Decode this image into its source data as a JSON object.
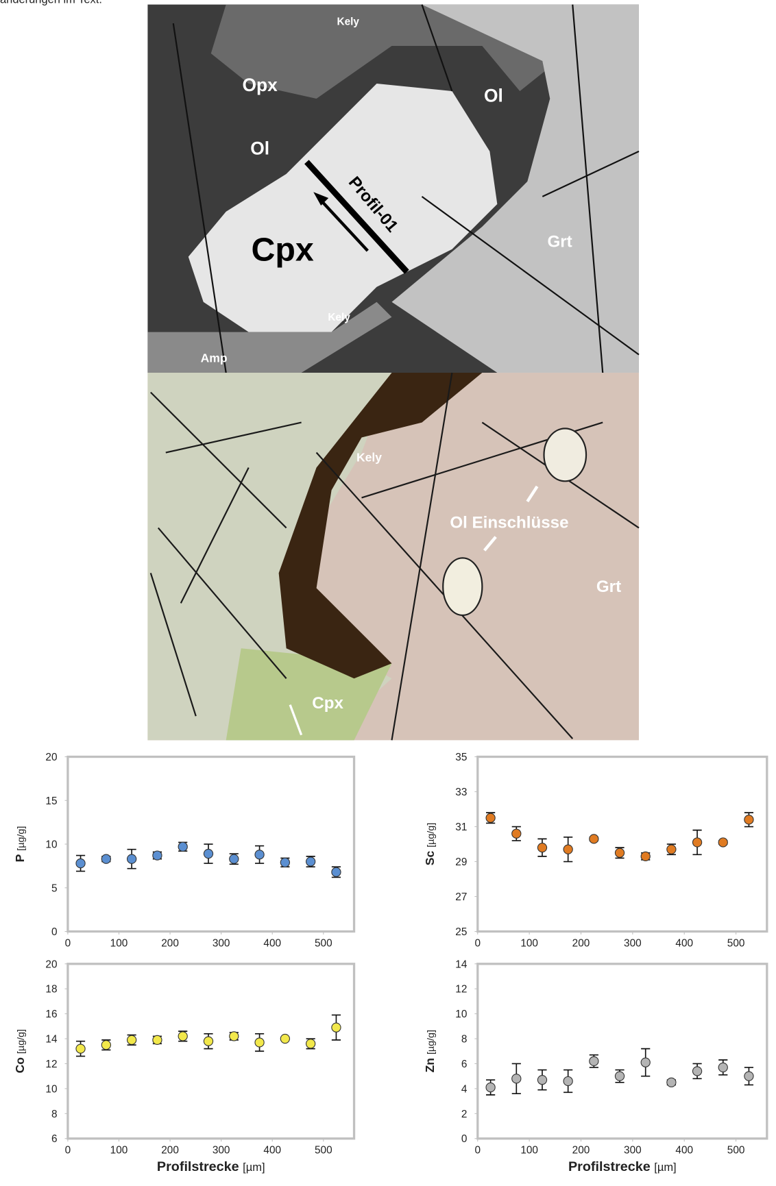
{
  "header": {
    "text": "änderungen im Text."
  },
  "sem_image": {
    "labels": [
      "Kely",
      "Opx",
      "Ol",
      "Ol",
      "Profil-01",
      "Cpx",
      "Grt",
      "Kely",
      "Amp"
    ]
  },
  "light_image": {
    "labels": [
      "Kely",
      "Ol Einschlüsse",
      "Grt",
      "Cpx"
    ]
  },
  "chart_data": [
    {
      "type": "scatter",
      "y_label": "P",
      "y_unit": "[µg/g]",
      "x": [
        25,
        75,
        125,
        175,
        225,
        275,
        325,
        375,
        425,
        475,
        525
      ],
      "values": [
        7.8,
        8.3,
        8.3,
        8.7,
        9.7,
        8.9,
        8.3,
        8.8,
        7.9,
        8.0,
        6.8
      ],
      "errors": [
        0.9,
        0.3,
        1.1,
        0.4,
        0.5,
        1.1,
        0.6,
        1.0,
        0.5,
        0.6,
        0.6
      ],
      "color": "#5b8fd1",
      "xlim": [
        0,
        560
      ],
      "xticks": [
        0,
        100,
        200,
        300,
        400,
        500
      ],
      "ylim": [
        0,
        20
      ],
      "yticks": [
        0,
        5,
        10,
        15,
        20
      ]
    },
    {
      "type": "scatter",
      "y_label": "Sc",
      "y_unit": "[µg/g]",
      "x": [
        25,
        75,
        125,
        175,
        225,
        275,
        325,
        375,
        425,
        475,
        525
      ],
      "values": [
        31.5,
        30.6,
        29.8,
        29.7,
        30.3,
        29.5,
        29.3,
        29.7,
        30.1,
        30.1,
        31.4
      ],
      "errors": [
        0.3,
        0.4,
        0.5,
        0.7,
        0.1,
        0.3,
        0.2,
        0.3,
        0.7,
        0.1,
        0.4
      ],
      "color": "#e07b22",
      "xlim": [
        0,
        560
      ],
      "xticks": [
        0,
        100,
        200,
        300,
        400,
        500
      ],
      "ylim": [
        25,
        35
      ],
      "yticks": [
        25,
        27,
        29,
        31,
        33,
        35
      ]
    },
    {
      "type": "scatter",
      "y_label": "Co",
      "y_unit": "[µg/g]",
      "x_label": "Profilstrecke",
      "x_unit": "[µm]",
      "x": [
        25,
        75,
        125,
        175,
        225,
        275,
        325,
        375,
        425,
        475,
        525
      ],
      "values": [
        13.2,
        13.5,
        13.9,
        13.9,
        14.2,
        13.8,
        14.2,
        13.7,
        14.0,
        13.6,
        14.9
      ],
      "errors": [
        0.6,
        0.4,
        0.4,
        0.3,
        0.4,
        0.6,
        0.3,
        0.7,
        0.1,
        0.4,
        1.0
      ],
      "color": "#f2e84b",
      "xlim": [
        0,
        560
      ],
      "xticks": [
        0,
        100,
        200,
        300,
        400,
        500
      ],
      "ylim": [
        6,
        20
      ],
      "yticks": [
        6,
        8,
        10,
        12,
        14,
        16,
        18,
        20
      ]
    },
    {
      "type": "scatter",
      "y_label": "Zn",
      "y_unit": "[µg/g]",
      "x_label": "Profilstrecke",
      "x_unit": "[µm]",
      "x": [
        25,
        75,
        125,
        175,
        225,
        275,
        325,
        375,
        425,
        475,
        525
      ],
      "values": [
        4.1,
        4.8,
        4.7,
        4.6,
        6.2,
        5.0,
        6.1,
        4.5,
        5.4,
        5.7,
        5.0
      ],
      "errors": [
        0.6,
        1.2,
        0.8,
        0.9,
        0.5,
        0.5,
        1.1,
        0.2,
        0.6,
        0.6,
        0.7
      ],
      "color": "#b4b4b4",
      "xlim": [
        0,
        560
      ],
      "xticks": [
        0,
        100,
        200,
        300,
        400,
        500
      ],
      "ylim": [
        0,
        14
      ],
      "yticks": [
        0,
        2,
        4,
        6,
        8,
        10,
        12,
        14
      ]
    }
  ]
}
